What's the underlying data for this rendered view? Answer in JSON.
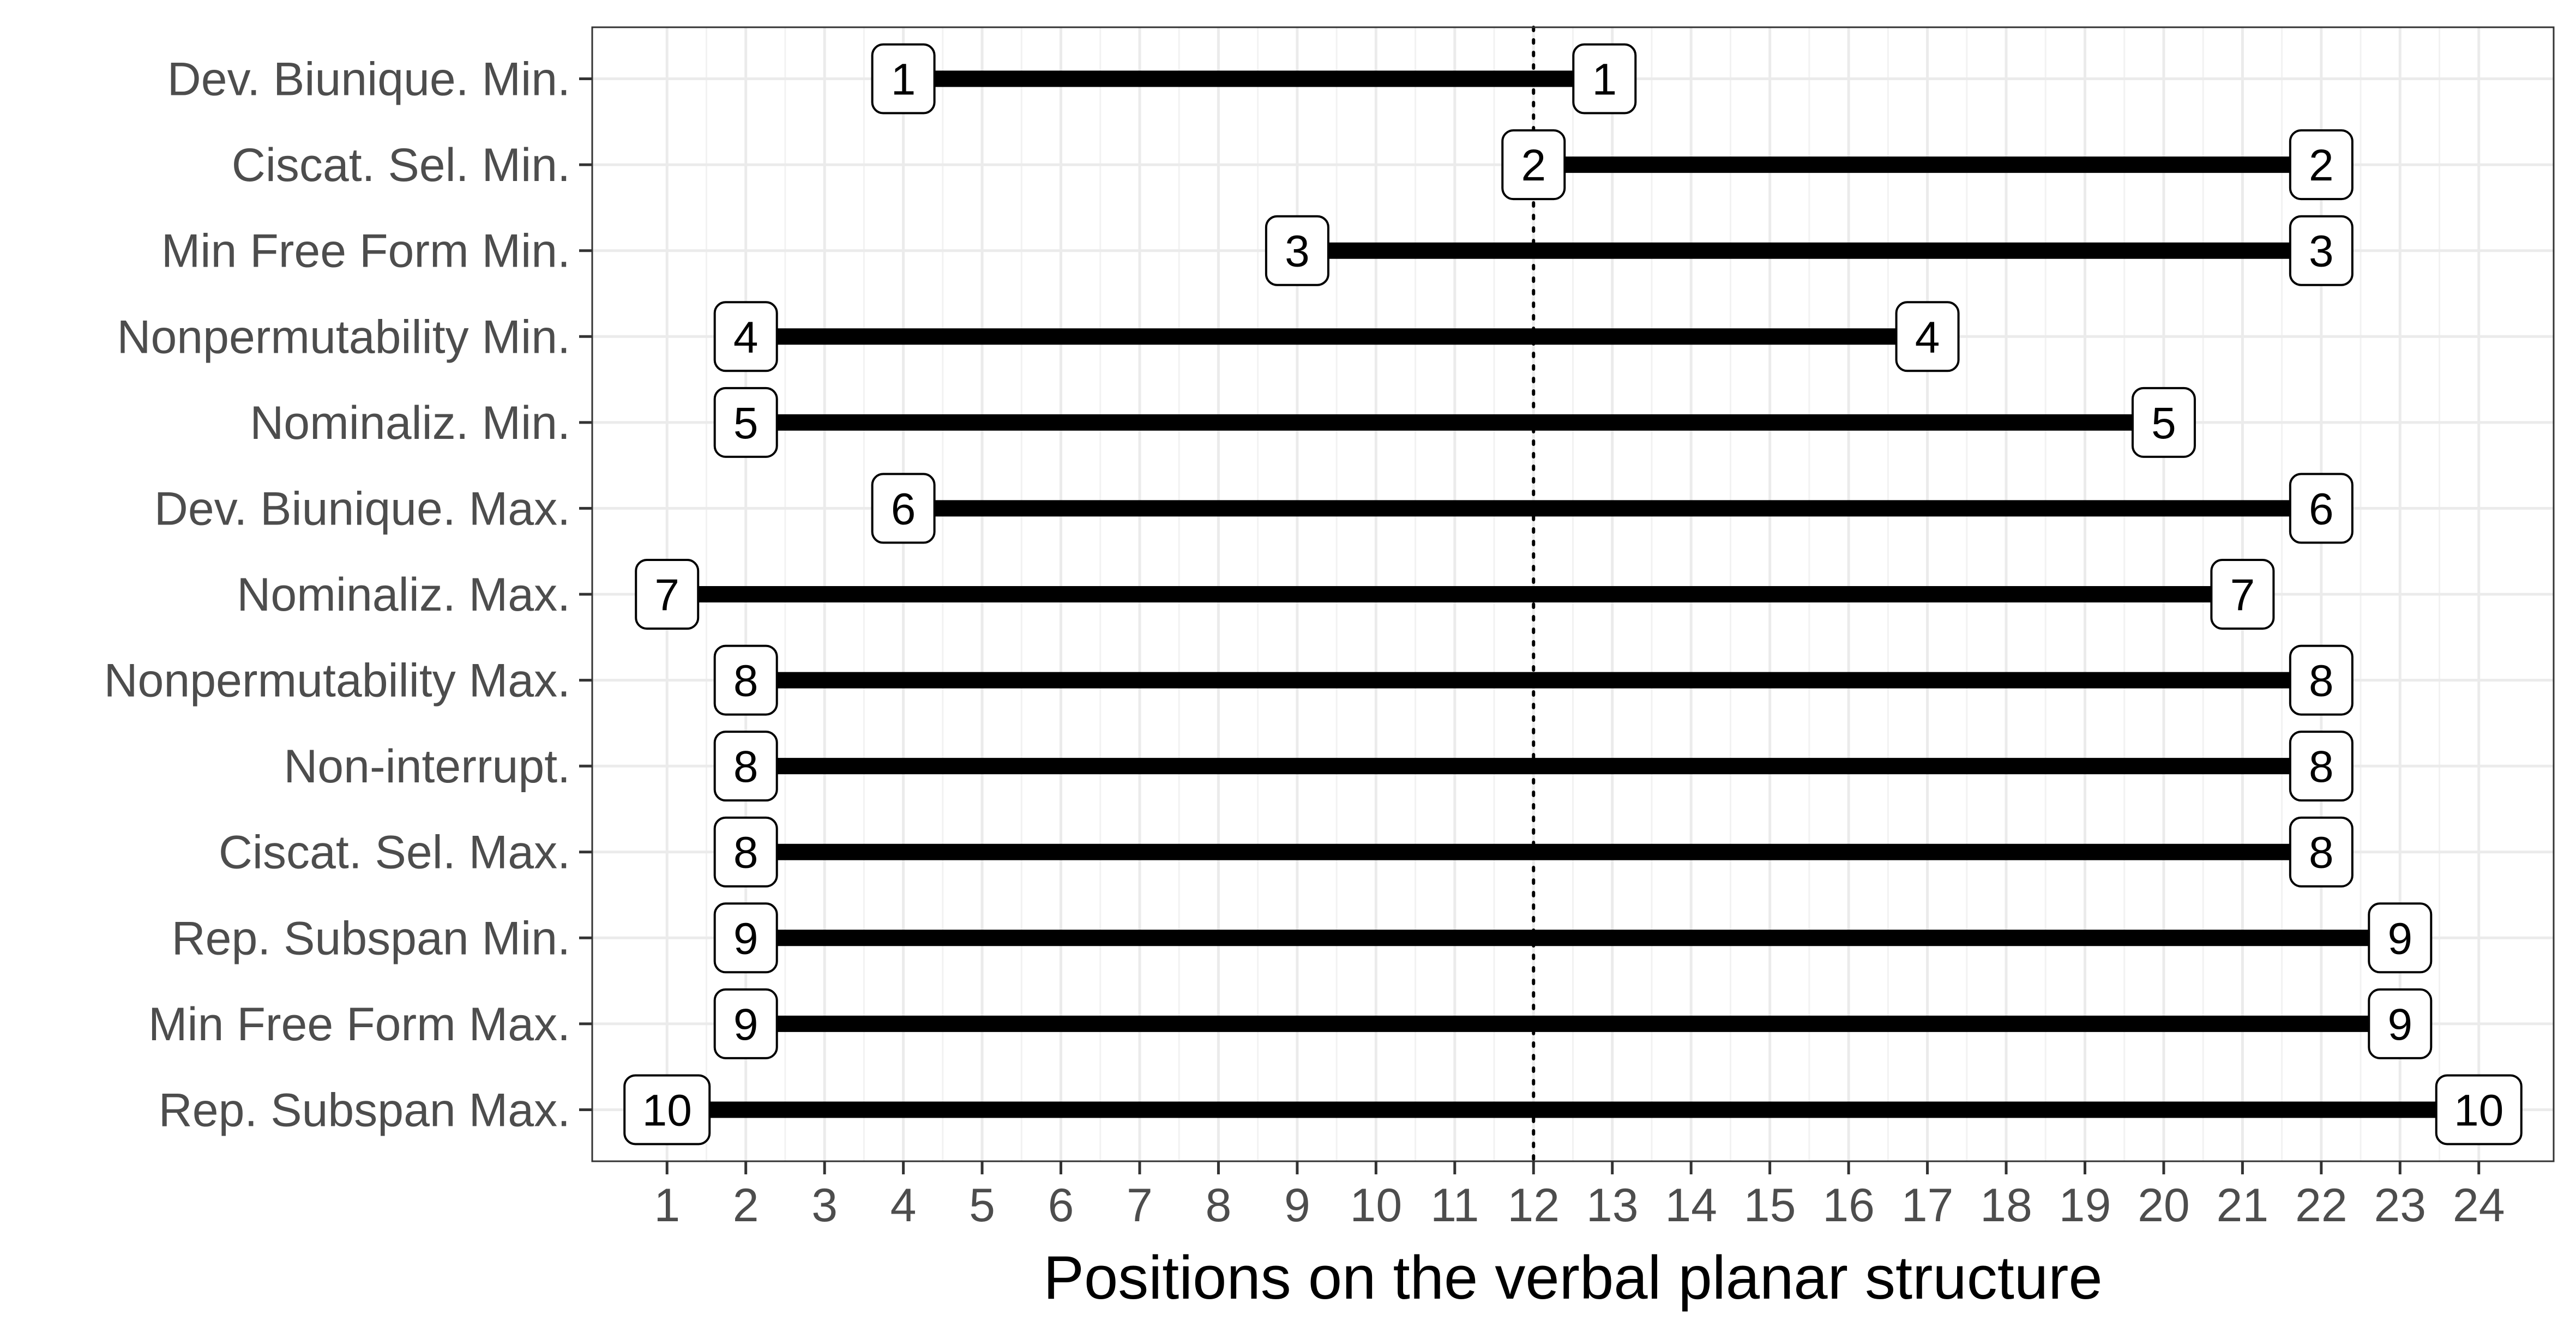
{
  "chart_data": {
    "type": "range",
    "xlabel": "Positions on the verbal planar structure",
    "ylabel": "",
    "xlim": [
      0.05,
      24.95
    ],
    "x_ticks": [
      1,
      2,
      3,
      4,
      5,
      6,
      7,
      8,
      9,
      10,
      11,
      12,
      13,
      14,
      15,
      16,
      17,
      18,
      19,
      20,
      21,
      22,
      23,
      24
    ],
    "reference_line_x": 12,
    "grid": true,
    "theme": "bw",
    "categories": [
      "Dev. Biunique. Min.",
      "Ciscat. Sel. Min.",
      "Min Free Form Min.",
      "Nonpermutability Min.",
      "Nominaliz. Min.",
      "Dev. Biunique. Max.",
      "Nominaliz. Max.",
      "Nonpermutability Max.",
      "Non-interrupt.",
      "Ciscat. Sel. Max.",
      "Rep. Subspan Min.",
      "Min Free Form Max.",
      "Rep. Subspan Max."
    ],
    "series": [
      {
        "start": 4,
        "end": 12.9,
        "label": "1"
      },
      {
        "start": 12,
        "end": 22,
        "label": "2"
      },
      {
        "start": 9,
        "end": 22,
        "label": "3"
      },
      {
        "start": 2,
        "end": 17,
        "label": "4"
      },
      {
        "start": 2,
        "end": 20,
        "label": "5"
      },
      {
        "start": 4,
        "end": 22,
        "label": "6"
      },
      {
        "start": 1,
        "end": 21,
        "label": "7"
      },
      {
        "start": 2,
        "end": 22,
        "label": "8"
      },
      {
        "start": 2,
        "end": 22,
        "label": "8"
      },
      {
        "start": 2,
        "end": 22,
        "label": "8"
      },
      {
        "start": 2,
        "end": 23,
        "label": "9"
      },
      {
        "start": 2,
        "end": 23,
        "label": "9"
      },
      {
        "start": 1,
        "end": 24,
        "label": "10"
      }
    ]
  }
}
